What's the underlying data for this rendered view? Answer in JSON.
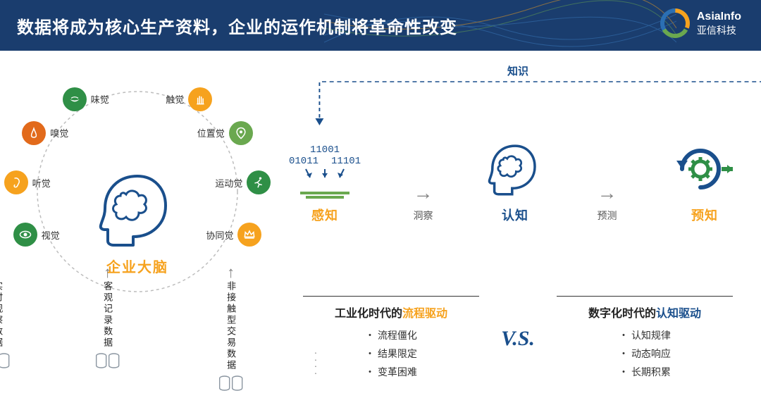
{
  "header": {
    "title": "数据将成为核心生产资料，企业的运作机制将革命性改变",
    "logo_en": "AsiaInfo",
    "logo_cn": "亚信科技",
    "bg_color": "#1a3d6e",
    "wave_colors": [
      "#3a7bbf",
      "#f6a21e",
      "#6aa84f"
    ],
    "logo_ring_colors": [
      "#f6a21e",
      "#6aa84f",
      "#1a4f8c"
    ]
  },
  "left": {
    "center_label": "企业大脑",
    "center_color": "#f6a21e",
    "head_color": "#1a4f8c",
    "brain_icon_color": "#1a4f8c",
    "arc_color": "#bdbdbd",
    "ring_radius": 145,
    "senses": [
      {
        "label": "味觉",
        "angle": -115,
        "color": "#2f8f46",
        "icon": "mouth",
        "side": "left"
      },
      {
        "label": "嗅觉",
        "angle": -145,
        "color": "#e26a1b",
        "icon": "nose",
        "side": "left"
      },
      {
        "label": "听觉",
        "angle": -175,
        "color": "#f6a21e",
        "icon": "ear",
        "side": "left"
      },
      {
        "label": "视觉",
        "angle": 155,
        "color": "#2f8f46",
        "icon": "eye",
        "side": "left"
      },
      {
        "label": "触觉",
        "angle": -65,
        "color": "#f6a21e",
        "icon": "hand",
        "side": "right"
      },
      {
        "label": "位置觉",
        "angle": -35,
        "color": "#6aa84f",
        "icon": "pin",
        "side": "right"
      },
      {
        "label": "运动觉",
        "angle": -5,
        "color": "#2f8f46",
        "icon": "run",
        "side": "right"
      },
      {
        "label": "协同觉",
        "angle": 25,
        "color": "#f6a21e",
        "icon": "crown",
        "side": "right"
      }
    ],
    "inputs": [
      {
        "label": "实时观察数据"
      },
      {
        "label": "客观记录数据"
      },
      {
        "label": "非接触型交易数据"
      }
    ],
    "cylinder_color": "#9aa5b0",
    "arrow_color": "#828282"
  },
  "right": {
    "knowledge_label": "知识",
    "loop_color": "#1a4f8c",
    "stages": [
      {
        "key": "perceive",
        "label": "感知",
        "color": "#f6a21e",
        "bits": [
          "11001",
          "01011",
          "11101"
        ],
        "funnel_color": "#6aa84f",
        "arrow_color": "#1a4f8c"
      },
      {
        "key": "cognize",
        "label": "认知",
        "color": "#1a4f8c"
      },
      {
        "key": "predict",
        "label": "预知",
        "color": "#f6a21e",
        "gear_color": "#2f8f46",
        "arc_color": "#1a4f8c"
      }
    ],
    "between": [
      {
        "text": "洞察"
      },
      {
        "text": "预测"
      }
    ],
    "arrow_color": "#828282",
    "vs": {
      "label": "V.S.",
      "color": "#1a4f8c",
      "left": {
        "title_plain": "工业化时代的",
        "title_accent": "流程驱动",
        "accent_color": "#f6a21e",
        "items": [
          "流程僵化",
          "结果限定",
          "变革困难"
        ]
      },
      "right": {
        "title_plain": "数字化时代的",
        "title_accent": "认知驱动",
        "accent_color": "#1a4f8c",
        "items": [
          "认知规律",
          "动态响应",
          "长期积累"
        ]
      }
    }
  }
}
